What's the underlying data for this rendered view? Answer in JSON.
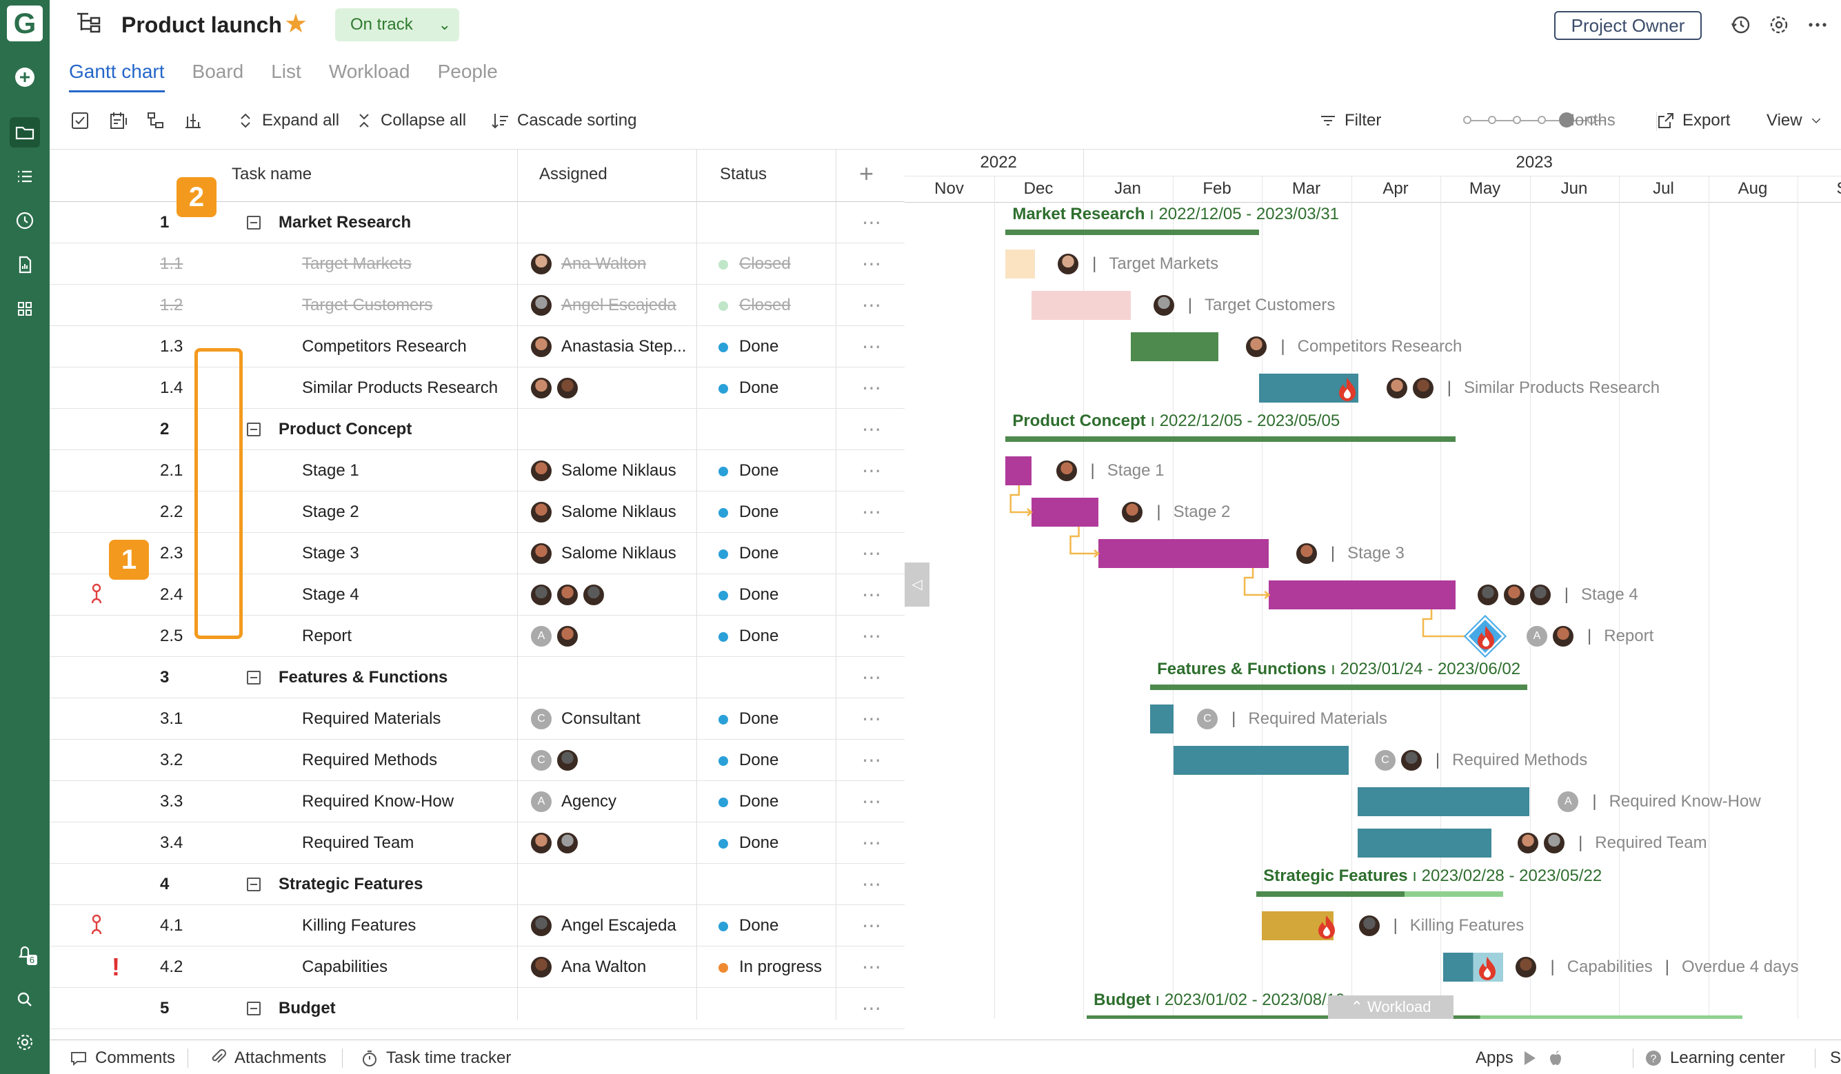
{
  "app": {
    "logo_letter": "G"
  },
  "header": {
    "project_title": "Product launch",
    "status": "On track",
    "owner_button": "Project Owner"
  },
  "tabs": [
    {
      "label": "Gantt chart",
      "active": true
    },
    {
      "label": "Board"
    },
    {
      "label": "List"
    },
    {
      "label": "Workload"
    },
    {
      "label": "People"
    }
  ],
  "toolbar": {
    "expand_all": "Expand all",
    "collapse_all": "Collapse all",
    "cascade_sorting": "Cascade sorting",
    "filter": "Filter",
    "zoom_label": "Months",
    "zoom_level": 4,
    "zoom_steps": 6,
    "export": "Export",
    "view": "View"
  },
  "grid": {
    "headers": {
      "task_name": "Task name",
      "assigned": "Assigned",
      "status": "Status"
    },
    "rows": [
      {
        "num": "1",
        "name": "Market Research",
        "type": "parent"
      },
      {
        "num": "1.1",
        "name": "Target Markets",
        "assigned": "Ana Walton",
        "status": "Closed",
        "closed": true
      },
      {
        "num": "1.2",
        "name": "Target Customers",
        "assigned": "Angel Escajeda",
        "status": "Closed",
        "closed": true
      },
      {
        "num": "1.3",
        "name": "Competitors Research",
        "assigned": "Anastasia Step...",
        "status": "Done"
      },
      {
        "num": "1.4",
        "name": "Similar Products Research",
        "assigned": "",
        "status": "Done"
      },
      {
        "num": "2",
        "name": "Product Concept",
        "type": "parent"
      },
      {
        "num": "2.1",
        "name": "Stage 1",
        "assigned": "Salome Niklaus",
        "status": "Done"
      },
      {
        "num": "2.2",
        "name": "Stage 2",
        "assigned": "Salome Niklaus",
        "status": "Done"
      },
      {
        "num": "2.3",
        "name": "Stage 3",
        "assigned": "Salome Niklaus",
        "status": "Done"
      },
      {
        "num": "2.4",
        "name": "Stage 4",
        "assigned": "",
        "status": "Done"
      },
      {
        "num": "2.5",
        "name": "Report",
        "assigned": "",
        "status": "Done"
      },
      {
        "num": "3",
        "name": "Features & Functions",
        "type": "parent"
      },
      {
        "num": "3.1",
        "name": "Required Materials",
        "assigned": "Consultant",
        "status": "Done"
      },
      {
        "num": "3.2",
        "name": "Required Methods",
        "assigned": "",
        "status": "Done"
      },
      {
        "num": "3.3",
        "name": "Required Know-How",
        "assigned": "Agency",
        "status": "Done"
      },
      {
        "num": "3.4",
        "name": "Required Team",
        "assigned": "",
        "status": "Done"
      },
      {
        "num": "4",
        "name": "Strategic Features",
        "type": "parent"
      },
      {
        "num": "4.1",
        "name": "Killing Features",
        "assigned": "Angel Escajeda",
        "status": "Done"
      },
      {
        "num": "4.2",
        "name": "Capabilities",
        "assigned": "Ana Walton",
        "status": "In progress"
      },
      {
        "num": "5",
        "name": "Budget",
        "type": "parent"
      }
    ]
  },
  "callouts": {
    "one": "1",
    "two": "2"
  },
  "avatar_letters": {
    "consultant": "C",
    "agency": "A"
  },
  "gantt": {
    "years": [
      "2022",
      "2023"
    ],
    "months": [
      "Nov",
      "Dec",
      "Jan",
      "Feb",
      "Mar",
      "Apr",
      "May",
      "Jun",
      "Jul",
      "Aug",
      "S"
    ],
    "summaries": {
      "market_research": {
        "name": "Market Research",
        "dates": "2022/12/05 - 2023/03/31"
      },
      "product_concept": {
        "name": "Product Concept",
        "dates": "2022/12/05 - 2023/05/05"
      },
      "features_functions": {
        "name": "Features & Functions",
        "dates": "2023/01/24 - 2023/06/02"
      },
      "strategic_features": {
        "name": "Strategic Features",
        "dates": "2023/02/28 - 2023/05/22"
      },
      "budget": {
        "name": "Budget",
        "dates": "2023/01/02 - 2023/08/10"
      }
    },
    "bar_labels": {
      "target_markets": "Target Markets",
      "target_customers": "Target Customers",
      "competitors_research": "Competitors Research",
      "similar_products": "Similar Products Research",
      "stage1": "Stage 1",
      "stage2": "Stage 2",
      "stage3": "Stage 3",
      "stage4": "Stage 4",
      "report": "Report",
      "required_materials": "Required Materials",
      "required_methods": "Required Methods",
      "required_know_how": "Required Know-How",
      "required_team": "Required Team",
      "killing_features": "Killing Features",
      "capabilities": "Capabilities",
      "overdue": "Overdue 4 days"
    },
    "workload_tab": "Workload"
  },
  "footer": {
    "comments": "Comments",
    "attachments": "Attachments",
    "time_tracker": "Task time tracker",
    "apps": "Apps",
    "learning_center": "Learning center",
    "support": "Support"
  },
  "notifications_count": "6",
  "colors": {
    "brand": "#2c6f4c",
    "accent_blue": "#2466c8",
    "callout": "#f39a1e",
    "bar_teal": "#3f8a9b",
    "bar_magenta": "#b03a9a",
    "bar_green": "#4e8a4e",
    "bar_gold": "#d4a73a",
    "done_dot": "#2aa0d8",
    "progress_dot": "#f08a30"
  }
}
